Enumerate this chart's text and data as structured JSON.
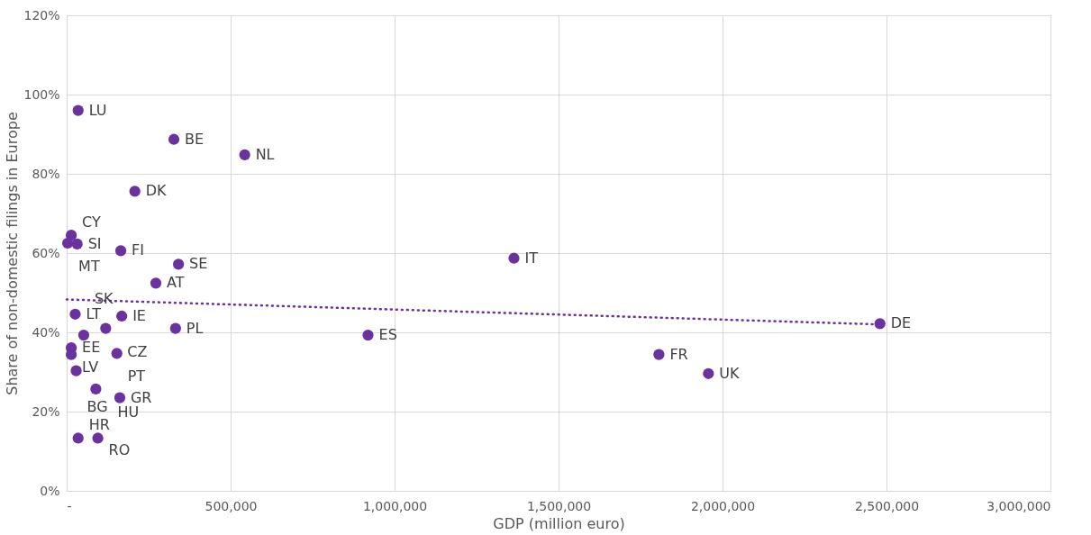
{
  "chart_data": {
    "type": "scatter",
    "xlabel": "GDP (million euro)",
    "ylabel": "Share of non-domestic filings in Europe",
    "xlim": [
      0,
      3000000
    ],
    "ylim": [
      0,
      120
    ],
    "xticks": [
      {
        "value": 0,
        "label": "-"
      },
      {
        "value": 500000,
        "label": "500,000"
      },
      {
        "value": 1000000,
        "label": "1,000,000"
      },
      {
        "value": 1500000,
        "label": "1,500,000"
      },
      {
        "value": 2000000,
        "label": "2,000,000"
      },
      {
        "value": 2500000,
        "label": "2,500,000"
      },
      {
        "value": 3000000,
        "label": "3,000,000"
      }
    ],
    "yticks": [
      {
        "value": 0,
        "label": "0%"
      },
      {
        "value": 20,
        "label": "20%"
      },
      {
        "value": 40,
        "label": "40%"
      },
      {
        "value": 60,
        "label": "60%"
      },
      {
        "value": 80,
        "label": "80%"
      },
      {
        "value": 100,
        "label": "100%"
      },
      {
        "value": 120,
        "label": "120%"
      }
    ],
    "grid": true,
    "legend": false,
    "marker": "circle",
    "series": [
      {
        "type": "scatter",
        "color": "#6a329f",
        "x": [
          35000,
          327000,
          543000,
          208000,
          14000,
          3000,
          32000,
          165000,
          341000,
          272000,
          26000,
          168000,
          119000,
          332000,
          52000,
          14000,
          14000,
          153000,
          29000,
          89000,
          162000,
          35000,
          95000,
          1364000,
          919000,
          2480000,
          1806000,
          1957000
        ],
        "values": [
          96,
          88.7,
          84.8,
          75.6,
          64.5,
          62.5,
          62.3,
          60.6,
          57.2,
          52.4,
          44.6,
          44.1,
          41,
          41,
          39.3,
          36.1,
          34.4,
          34.7,
          30.3,
          25.7,
          23.5,
          13.3,
          13.3,
          58.7,
          39.3,
          42.2,
          34.4,
          29.6
        ]
      },
      {
        "type": "line",
        "color": "#6a329f",
        "line_style": "dotted",
        "marker": "none",
        "x": [
          0,
          2480000
        ],
        "values": [
          48.3,
          42
        ]
      }
    ],
    "annotations": [
      {
        "text": "LU",
        "x": 35000,
        "y": 96
      },
      {
        "text": "BE",
        "x": 327000,
        "y": 88.7
      },
      {
        "text": "NL",
        "x": 543000,
        "y": 84.8
      },
      {
        "text": "DK",
        "x": 208000,
        "y": 75.6
      },
      {
        "text": "CY",
        "x": 14000,
        "y": 64.5
      },
      {
        "text": "MT",
        "x": 3000,
        "y": 62.5
      },
      {
        "text": "SI",
        "x": 32000,
        "y": 62.3
      },
      {
        "text": "FI",
        "x": 165000,
        "y": 60.6
      },
      {
        "text": "SE",
        "x": 341000,
        "y": 57.2
      },
      {
        "text": "AT",
        "x": 272000,
        "y": 52.4
      },
      {
        "text": "LT",
        "x": 26000,
        "y": 44.6
      },
      {
        "text": "IE",
        "x": 168000,
        "y": 44.1
      },
      {
        "text": "CZ",
        "x": 119000,
        "y": 41
      },
      {
        "text": "PL",
        "x": 332000,
        "y": 41
      },
      {
        "text": "SK",
        "x": 52000,
        "y": 39.3
      },
      {
        "text": "EE",
        "x": 14000,
        "y": 36.1
      },
      {
        "text": "LV",
        "x": 14000,
        "y": 34.4
      },
      {
        "text": "PT",
        "x": 153000,
        "y": 34.7
      },
      {
        "text": "BG",
        "x": 29000,
        "y": 30.3
      },
      {
        "text": "HU",
        "x": 89000,
        "y": 25.7
      },
      {
        "text": "GR",
        "x": 162000,
        "y": 23.5
      },
      {
        "text": "HR",
        "x": 35000,
        "y": 13.3
      },
      {
        "text": "RO",
        "x": 95000,
        "y": 13.3
      },
      {
        "text": "IT",
        "x": 1364000,
        "y": 58.7
      },
      {
        "text": "ES",
        "x": 919000,
        "y": 39.3
      },
      {
        "text": "DE",
        "x": 2480000,
        "y": 42.2
      },
      {
        "text": "FR",
        "x": 1806000,
        "y": 34.4
      },
      {
        "text": "UK",
        "x": 1957000,
        "y": 29.6
      }
    ]
  }
}
